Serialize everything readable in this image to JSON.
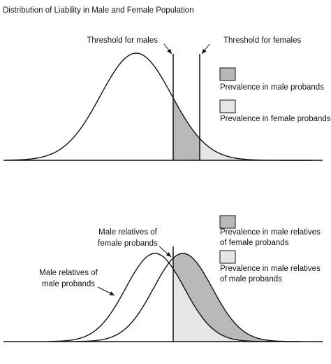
{
  "title": "Distribution of Liability in Male and Female Population",
  "top": {
    "threshold_males": "Threshold for males",
    "threshold_females": "Threshold for females",
    "legend": [
      "Prevalence in male probands",
      "Prevalence in female probands"
    ]
  },
  "bottom": {
    "female_relatives": [
      "Male relatives of",
      "female probands"
    ],
    "male_relatives": [
      "Male relatives of",
      "male probands"
    ],
    "legend": [
      [
        "Prevalence in male relatives",
        "of female probands"
      ],
      [
        "Prevalence in male relatives",
        "of male probands"
      ]
    ]
  }
}
